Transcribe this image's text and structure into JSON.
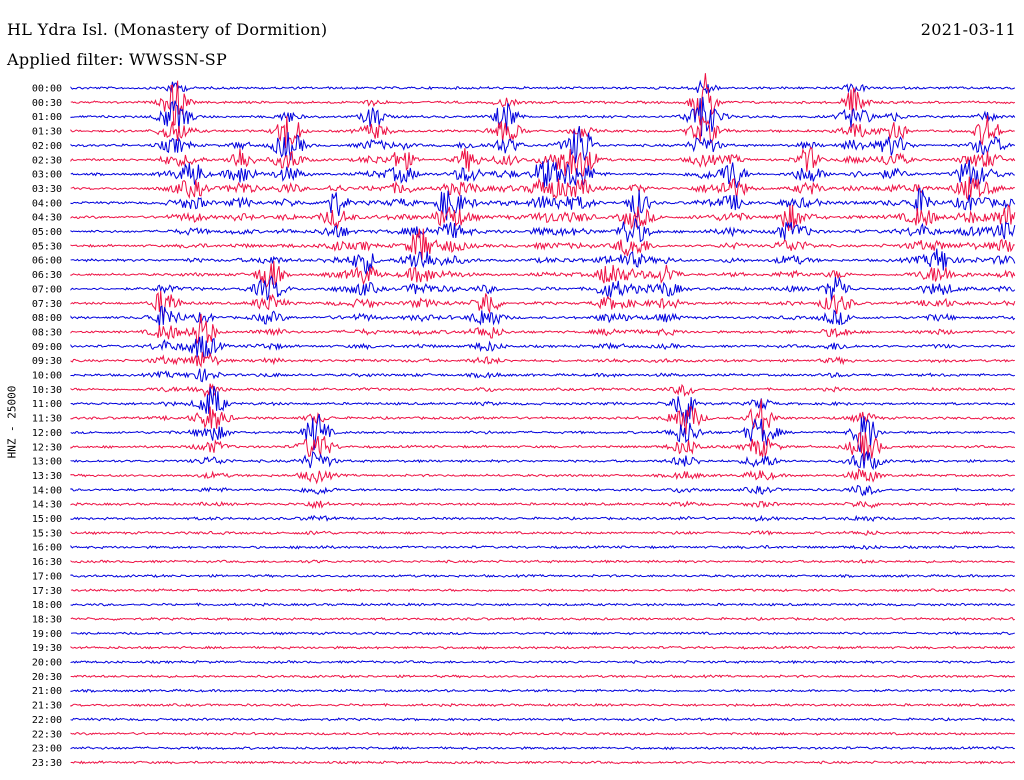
{
  "header": {
    "station": "HL Ydra Isl. (Monastery of Dormition)",
    "date": "2021-03-11",
    "filter": "Applied filter: WWSSN-SP"
  },
  "colors": {
    "odd_trace": "#0000dd",
    "even_trace": "#ee1144"
  },
  "chart_data": {
    "type": "line",
    "title": "HL Ydra Isl. (Monastery of Dormition)",
    "ylabel": "HNZ - 25000",
    "row_labels": [
      "00:00",
      "00:30",
      "01:00",
      "01:30",
      "02:00",
      "02:30",
      "03:00",
      "03:30",
      "04:00",
      "04:30",
      "05:00",
      "05:30",
      "06:00",
      "06:30",
      "07:00",
      "07:30",
      "08:00",
      "08:30",
      "09:00",
      "09:30",
      "10:00",
      "10:30",
      "11:00",
      "11:30",
      "12:00",
      "12:30",
      "13:00",
      "13:30",
      "14:00",
      "14:30",
      "15:00",
      "15:30",
      "16:00",
      "16:30",
      "17:00",
      "17:30",
      "18:00",
      "18:30",
      "19:00",
      "19:30",
      "20:00",
      "20:30",
      "21:00",
      "21:30",
      "22:00",
      "22:30",
      "23:00",
      "23:30"
    ],
    "series": [
      {
        "color": "#0000dd",
        "rows": "00:00, 01:00, 02:00, ... (full hour rows)"
      },
      {
        "color": "#ee1144",
        "rows": "00:30, 01:30, 02:30, ... (half hour rows)"
      }
    ],
    "events": [
      {
        "minute": 10,
        "start_row": 15,
        "amplitude": 3.2
      },
      {
        "minute": 11,
        "start_row": 1,
        "amplitude": 4.5
      },
      {
        "minute": 13,
        "start_row": 6,
        "amplitude": 2.3
      },
      {
        "minute": 14,
        "start_row": 17,
        "amplitude": 3.6
      },
      {
        "minute": 15,
        "start_row": 22,
        "amplitude": 3.0
      },
      {
        "minute": 18,
        "start_row": 5,
        "amplitude": 2.5
      },
      {
        "minute": 21,
        "start_row": 13,
        "amplitude": 3.4
      },
      {
        "minute": 23,
        "start_row": 3,
        "amplitude": 4.0
      },
      {
        "minute": 26,
        "start_row": 24,
        "amplitude": 3.8
      },
      {
        "minute": 28,
        "start_row": 8,
        "amplitude": 2.6
      },
      {
        "minute": 31,
        "start_row": 12,
        "amplitude": 2.6
      },
      {
        "minute": 32,
        "start_row": 2,
        "amplitude": 2.1
      },
      {
        "minute": 35,
        "start_row": 5,
        "amplitude": 2.2
      },
      {
        "minute": 37,
        "start_row": 11,
        "amplitude": 3.4
      },
      {
        "minute": 40,
        "start_row": 8,
        "amplitude": 3.3
      },
      {
        "minute": 42,
        "start_row": 5,
        "amplitude": 2.2
      },
      {
        "minute": 44,
        "start_row": 15,
        "amplitude": 2.7
      },
      {
        "minute": 46,
        "start_row": 2,
        "amplitude": 3.0
      },
      {
        "minute": 50,
        "start_row": 6,
        "amplitude": 2.6
      },
      {
        "minute": 52,
        "start_row": 5,
        "amplitude": 2.4
      },
      {
        "minute": 54,
        "start_row": 4,
        "amplitude": 4.5
      },
      {
        "minute": 57,
        "start_row": 13,
        "amplitude": 2.4
      },
      {
        "minute": 59,
        "start_row": 10,
        "amplitude": 2.0
      },
      {
        "minute": 60,
        "start_row": 8,
        "amplitude": 2.8
      },
      {
        "minute": 63,
        "start_row": 13,
        "amplitude": 2.0
      },
      {
        "minute": 65,
        "start_row": 22,
        "amplitude": 4.5
      },
      {
        "minute": 67,
        "start_row": 1,
        "amplitude": 5.5
      },
      {
        "minute": 70,
        "start_row": 6,
        "amplitude": 3.0
      },
      {
        "minute": 73,
        "start_row": 23,
        "amplitude": 4.2
      },
      {
        "minute": 76,
        "start_row": 9,
        "amplitude": 2.5
      },
      {
        "minute": 78,
        "start_row": 5,
        "amplitude": 2.4
      },
      {
        "minute": 81,
        "start_row": 14,
        "amplitude": 2.8
      },
      {
        "minute": 83,
        "start_row": 1,
        "amplitude": 3.0
      },
      {
        "minute": 84,
        "start_row": 24,
        "amplitude": 4.3
      },
      {
        "minute": 87,
        "start_row": 3,
        "amplitude": 2.8
      },
      {
        "minute": 90,
        "start_row": 8,
        "amplitude": 2.7
      },
      {
        "minute": 92,
        "start_row": 12,
        "amplitude": 2.3
      },
      {
        "minute": 95,
        "start_row": 6,
        "amplitude": 3.0
      },
      {
        "minute": 97,
        "start_row": 3,
        "amplitude": 3.2
      },
      {
        "minute": 99,
        "start_row": 9,
        "amplitude": 2.4
      }
    ]
  }
}
